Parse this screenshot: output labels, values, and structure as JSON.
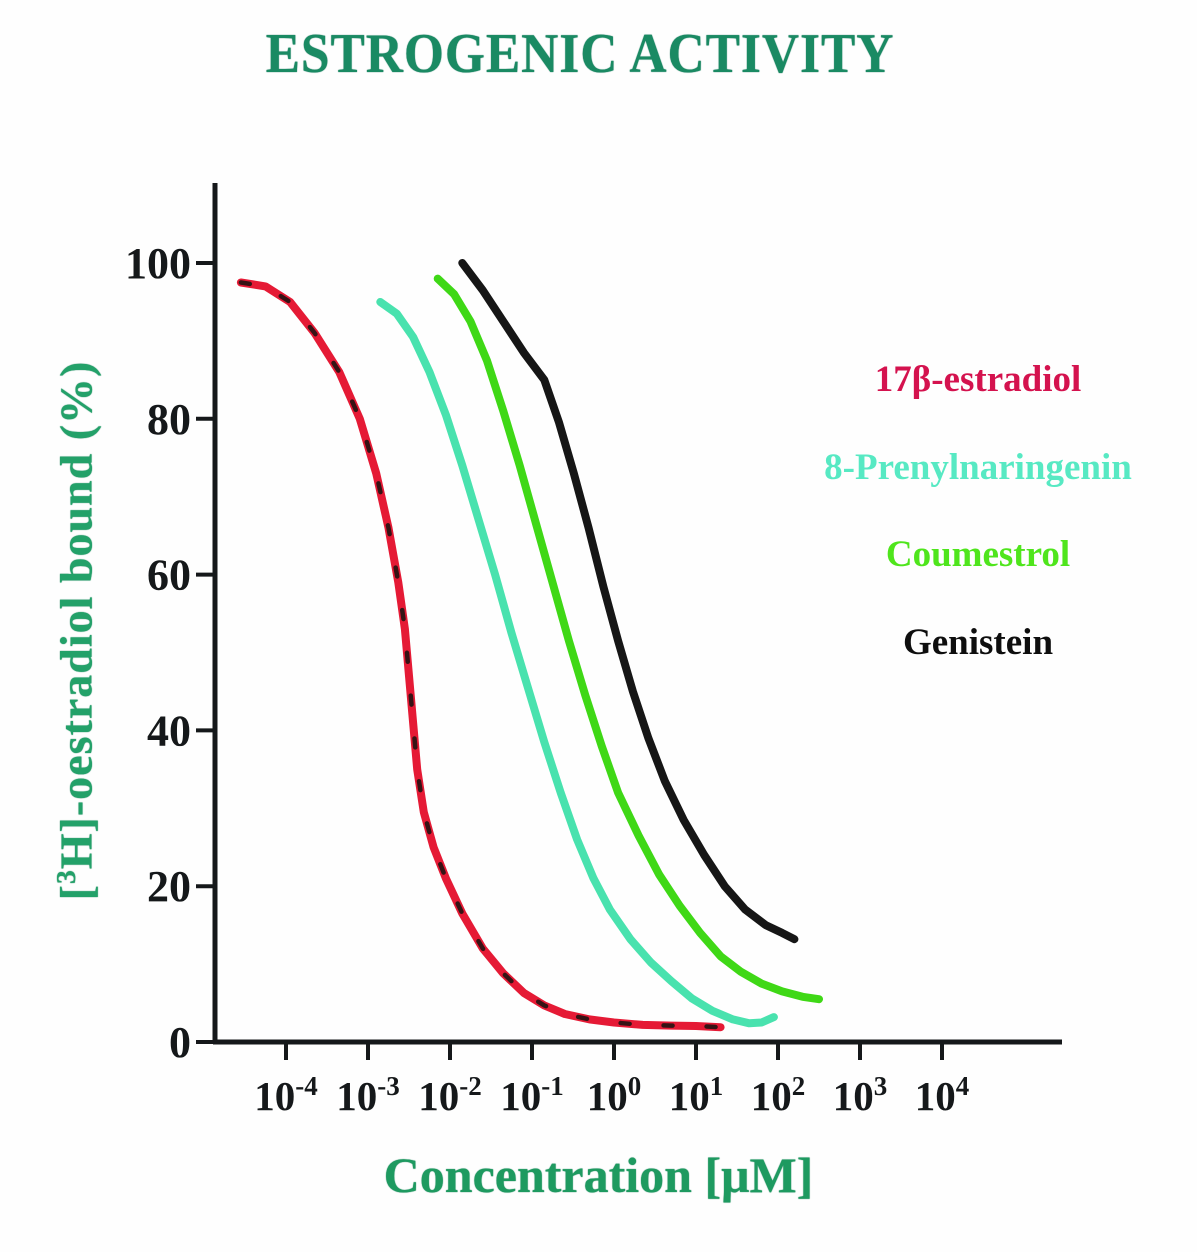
{
  "title": "ESTROGENIC ACTIVITY",
  "chart_data": {
    "type": "line",
    "title": "ESTROGENIC ACTIVITY",
    "xlabel": "Concentration [μM]",
    "ylabel": "[3H]-oestradiol bound (%)",
    "ylabel_parts": {
      "pre": "[",
      "sup": "3",
      "rest": "H]-oestradiol bound (%)"
    },
    "x_scale": "log10",
    "x_unit": "μM",
    "x_tick_base": "10",
    "x_tick_exponents": [
      -4,
      -3,
      -2,
      -1,
      0,
      1,
      2,
      3,
      4
    ],
    "y_ticks": [
      0,
      20,
      40,
      60,
      80,
      100
    ],
    "ylim": [
      0,
      110
    ],
    "xlim_log10": [
      -4.85,
      5.4
    ],
    "grid": false,
    "legend_position": "right",
    "series": [
      {
        "name": "17β-estradiol",
        "color": "#e51a35",
        "label_color": "#d4124e",
        "scan_dashes": true,
        "points": [
          [
            -4.55,
            97.5
          ],
          [
            -4.25,
            97
          ],
          [
            -3.95,
            95
          ],
          [
            -3.65,
            91
          ],
          [
            -3.35,
            86
          ],
          [
            -3.1,
            80
          ],
          [
            -2.9,
            73
          ],
          [
            -2.75,
            66
          ],
          [
            -2.63,
            59
          ],
          [
            -2.55,
            53
          ],
          [
            -2.5,
            47
          ],
          [
            -2.45,
            41
          ],
          [
            -2.4,
            35
          ],
          [
            -2.32,
            29.5
          ],
          [
            -2.2,
            25
          ],
          [
            -2.05,
            21
          ],
          [
            -1.85,
            16.5
          ],
          [
            -1.6,
            12
          ],
          [
            -1.35,
            8.8
          ],
          [
            -1.1,
            6.3
          ],
          [
            -0.85,
            4.7
          ],
          [
            -0.6,
            3.6
          ],
          [
            -0.3,
            2.9
          ],
          [
            0,
            2.5
          ],
          [
            0.35,
            2.2
          ],
          [
            0.7,
            2.1
          ],
          [
            1.0,
            2.05
          ],
          [
            1.3,
            1.9
          ]
        ]
      },
      {
        "name": "8-Prenylnaringenin",
        "color": "#49e2ae",
        "label_color": "#57e9c3",
        "scan_dashes": false,
        "points": [
          [
            -2.85,
            95
          ],
          [
            -2.65,
            93.5
          ],
          [
            -2.45,
            90.5
          ],
          [
            -2.25,
            86
          ],
          [
            -2.05,
            80.5
          ],
          [
            -1.85,
            74
          ],
          [
            -1.65,
            67
          ],
          [
            -1.45,
            60
          ],
          [
            -1.25,
            52.5
          ],
          [
            -1.05,
            45.5
          ],
          [
            -0.85,
            38.5
          ],
          [
            -0.65,
            32
          ],
          [
            -0.45,
            26
          ],
          [
            -0.25,
            21
          ],
          [
            -0.05,
            17
          ],
          [
            0.2,
            13.2
          ],
          [
            0.45,
            10.2
          ],
          [
            0.7,
            7.8
          ],
          [
            0.95,
            5.6
          ],
          [
            1.2,
            4
          ],
          [
            1.45,
            2.9
          ],
          [
            1.65,
            2.4
          ],
          [
            1.8,
            2.5
          ],
          [
            1.95,
            3.2
          ]
        ]
      },
      {
        "name": "Coumestrol",
        "color": "#3fd816",
        "label_color": "#4fe51c",
        "scan_dashes": false,
        "points": [
          [
            -2.15,
            98
          ],
          [
            -1.95,
            96
          ],
          [
            -1.75,
            92.5
          ],
          [
            -1.55,
            87.5
          ],
          [
            -1.35,
            81
          ],
          [
            -1.15,
            74
          ],
          [
            -0.95,
            66.5
          ],
          [
            -0.75,
            59
          ],
          [
            -0.55,
            51.5
          ],
          [
            -0.35,
            44.5
          ],
          [
            -0.15,
            38
          ],
          [
            0.05,
            32
          ],
          [
            0.3,
            26.5
          ],
          [
            0.55,
            21.5
          ],
          [
            0.8,
            17.5
          ],
          [
            1.05,
            14
          ],
          [
            1.3,
            11
          ],
          [
            1.55,
            9
          ],
          [
            1.8,
            7.5
          ],
          [
            2.05,
            6.5
          ],
          [
            2.3,
            5.8
          ],
          [
            2.5,
            5.5
          ]
        ]
      },
      {
        "name": "Genistein",
        "color": "#161616",
        "label_color": "#0e0e0e",
        "scan_dashes": false,
        "points": [
          [
            -1.85,
            100
          ],
          [
            -1.6,
            96.5
          ],
          [
            -1.35,
            92.5
          ],
          [
            -1.1,
            88.5
          ],
          [
            -0.85,
            85
          ],
          [
            -0.67,
            79.5
          ],
          [
            -0.49,
            73
          ],
          [
            -0.31,
            66
          ],
          [
            -0.13,
            58.5
          ],
          [
            0.05,
            51.5
          ],
          [
            0.23,
            45
          ],
          [
            0.42,
            39
          ],
          [
            0.62,
            33.5
          ],
          [
            0.85,
            28.5
          ],
          [
            1.1,
            24
          ],
          [
            1.35,
            20
          ],
          [
            1.6,
            17
          ],
          [
            1.85,
            15
          ],
          [
            2.05,
            14
          ],
          [
            2.2,
            13.2
          ]
        ]
      }
    ]
  },
  "colors": {
    "title": "#1a8a63",
    "axis": "#15181a",
    "axis_titles": "#1e9a60"
  }
}
